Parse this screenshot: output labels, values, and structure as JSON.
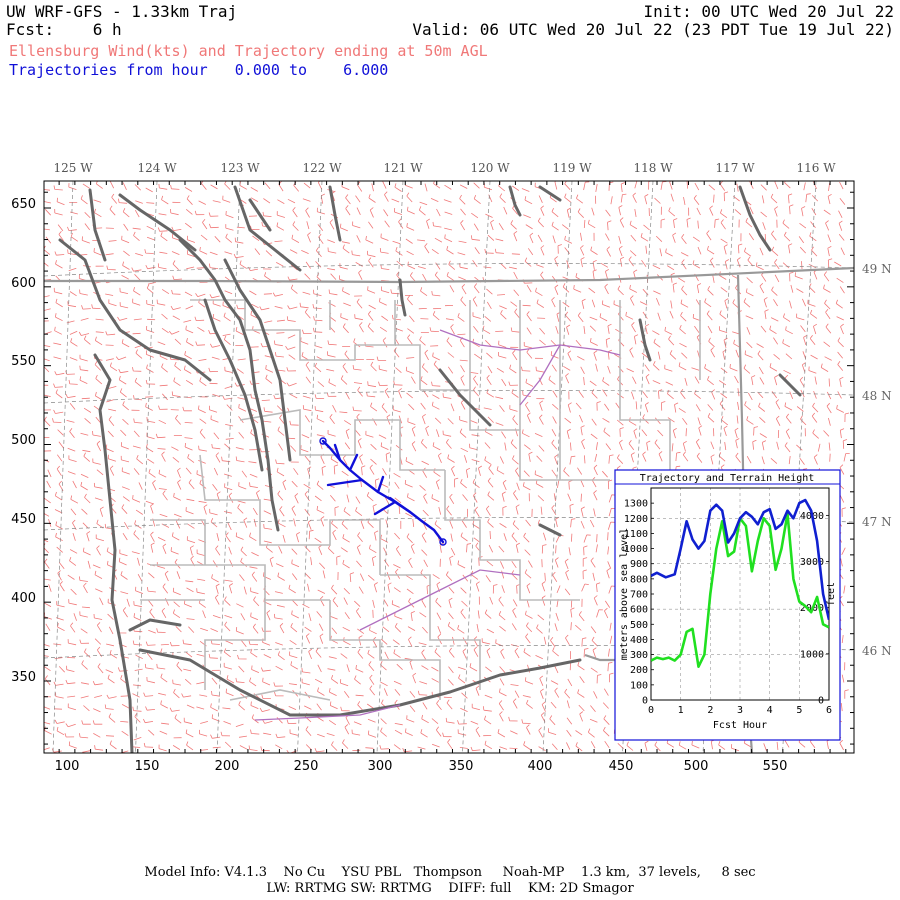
{
  "header": {
    "line1_left": "UW WRF-GFS - 1.33km Traj",
    "line1_right": "Init: 00 UTC Wed 20 Jul 22",
    "line2_left": "Fcst:    6 h",
    "line2_right": "Valid: 06 UTC Wed 20 Jul 22 (23 PDT Tue 19 Jul 22)",
    "line3": "Ellensburg Wind(kts) and Trajectory ending at 50m AGL",
    "line4": "Trajectories from hour   0.000 to    6.000"
  },
  "map": {
    "x_ticks": [
      "100",
      "150",
      "200",
      "250",
      "300",
      "350",
      "400",
      "450",
      "500",
      "550"
    ],
    "y_ticks": [
      "650",
      "600",
      "550",
      "500",
      "450",
      "400",
      "350"
    ],
    "lon_labels": [
      "125 W",
      "124 W",
      "123 W",
      "122 W",
      "121 W",
      "120 W",
      "119 W",
      "118 W",
      "117 W",
      "116 W"
    ],
    "lat_labels": [
      "49 N",
      "48 N",
      "47 N",
      "46 N"
    ],
    "colors": {
      "wind_barbs": "#f07878",
      "trajectory": "#1010d8",
      "coastline": "#666666",
      "state_border": "#999999",
      "county_border": "#bbbbbb",
      "rivers": "#b070c0"
    }
  },
  "inset": {
    "title": "Trajectory and Terrain Height",
    "y_left_label": "meters above sea level",
    "y_right_label": "feet",
    "x_label": "Fcst Hour",
    "x_ticks": [
      "0",
      "1",
      "2",
      "3",
      "4",
      "5",
      "6"
    ],
    "y_left_ticks": [
      "0",
      "100",
      "200",
      "300",
      "400",
      "500",
      "600",
      "700",
      "800",
      "900",
      "1000",
      "1100",
      "1200",
      "1300"
    ],
    "y_right_ticks": [
      "0",
      "1000",
      "2000",
      "3000",
      "4000"
    ]
  },
  "chart_data": {
    "type": "line",
    "title": "Trajectory and Terrain Height",
    "xlabel": "Fcst Hour",
    "ylabel": "meters above sea level",
    "xlim": [
      0,
      6
    ],
    "ylim": [
      0,
      1400
    ],
    "grid": true,
    "series": [
      {
        "color": "#1020d0",
        "x": [
          0,
          0.2,
          0.5,
          0.8,
          1.0,
          1.2,
          1.4,
          1.6,
          1.8,
          2.0,
          2.2,
          2.4,
          2.6,
          2.8,
          3.0,
          3.2,
          3.4,
          3.6,
          3.8,
          4.0,
          4.2,
          4.4,
          4.6,
          4.8,
          5.0,
          5.2,
          5.4,
          5.6,
          5.8,
          6.0
        ],
        "y": [
          820,
          840,
          810,
          830,
          1000,
          1180,
          1060,
          1000,
          1050,
          1250,
          1290,
          1250,
          1040,
          1100,
          1200,
          1240,
          1210,
          1160,
          1240,
          1260,
          1130,
          1160,
          1250,
          1200,
          1300,
          1320,
          1250,
          1050,
          700,
          530
        ]
      },
      {
        "color": "#20e020",
        "x": [
          0,
          0.2,
          0.4,
          0.6,
          0.8,
          1.0,
          1.2,
          1.4,
          1.6,
          1.8,
          2.0,
          2.2,
          2.4,
          2.6,
          2.8,
          3.0,
          3.2,
          3.4,
          3.6,
          3.8,
          4.0,
          4.2,
          4.4,
          4.6,
          4.8,
          5.0,
          5.2,
          5.4,
          5.6,
          5.8,
          6.0
        ],
        "y": [
          260,
          280,
          270,
          280,
          260,
          300,
          450,
          470,
          220,
          300,
          700,
          1000,
          1180,
          950,
          980,
          1200,
          1150,
          850,
          1050,
          1200,
          1150,
          860,
          1000,
          1230,
          800,
          650,
          620,
          580,
          680,
          500,
          480
        ]
      }
    ]
  }
}
